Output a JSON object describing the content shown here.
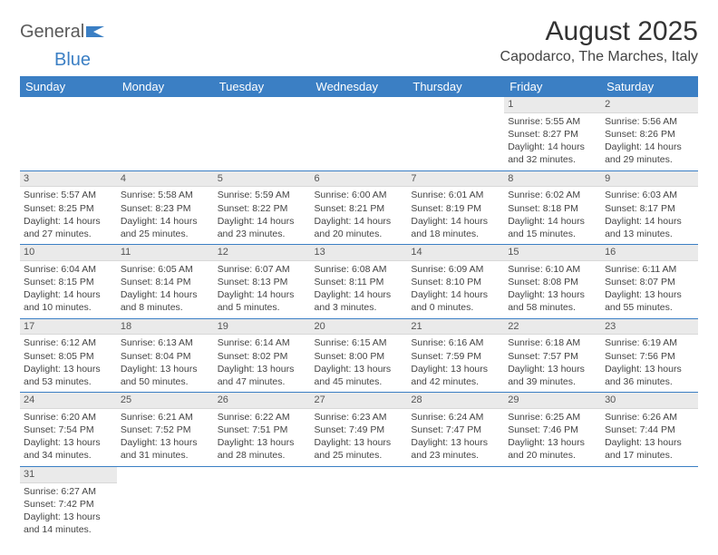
{
  "logo": {
    "text1": "General",
    "text2": "Blue"
  },
  "title": "August 2025",
  "location": "Capodarco, The Marches, Italy",
  "colors": {
    "header_bg": "#3b7fc4",
    "header_text": "#ffffff",
    "daynum_bg": "#eaeaea",
    "border": "#3b7fc4",
    "text": "#444444"
  },
  "weekdays": [
    "Sunday",
    "Monday",
    "Tuesday",
    "Wednesday",
    "Thursday",
    "Friday",
    "Saturday"
  ],
  "weeks": [
    [
      null,
      null,
      null,
      null,
      null,
      {
        "d": "1",
        "sr": "5:55 AM",
        "ss": "8:27 PM",
        "dl": "14 hours and 32 minutes."
      },
      {
        "d": "2",
        "sr": "5:56 AM",
        "ss": "8:26 PM",
        "dl": "14 hours and 29 minutes."
      }
    ],
    [
      {
        "d": "3",
        "sr": "5:57 AM",
        "ss": "8:25 PM",
        "dl": "14 hours and 27 minutes."
      },
      {
        "d": "4",
        "sr": "5:58 AM",
        "ss": "8:23 PM",
        "dl": "14 hours and 25 minutes."
      },
      {
        "d": "5",
        "sr": "5:59 AM",
        "ss": "8:22 PM",
        "dl": "14 hours and 23 minutes."
      },
      {
        "d": "6",
        "sr": "6:00 AM",
        "ss": "8:21 PM",
        "dl": "14 hours and 20 minutes."
      },
      {
        "d": "7",
        "sr": "6:01 AM",
        "ss": "8:19 PM",
        "dl": "14 hours and 18 minutes."
      },
      {
        "d": "8",
        "sr": "6:02 AM",
        "ss": "8:18 PM",
        "dl": "14 hours and 15 minutes."
      },
      {
        "d": "9",
        "sr": "6:03 AM",
        "ss": "8:17 PM",
        "dl": "14 hours and 13 minutes."
      }
    ],
    [
      {
        "d": "10",
        "sr": "6:04 AM",
        "ss": "8:15 PM",
        "dl": "14 hours and 10 minutes."
      },
      {
        "d": "11",
        "sr": "6:05 AM",
        "ss": "8:14 PM",
        "dl": "14 hours and 8 minutes."
      },
      {
        "d": "12",
        "sr": "6:07 AM",
        "ss": "8:13 PM",
        "dl": "14 hours and 5 minutes."
      },
      {
        "d": "13",
        "sr": "6:08 AM",
        "ss": "8:11 PM",
        "dl": "14 hours and 3 minutes."
      },
      {
        "d": "14",
        "sr": "6:09 AM",
        "ss": "8:10 PM",
        "dl": "14 hours and 0 minutes."
      },
      {
        "d": "15",
        "sr": "6:10 AM",
        "ss": "8:08 PM",
        "dl": "13 hours and 58 minutes."
      },
      {
        "d": "16",
        "sr": "6:11 AM",
        "ss": "8:07 PM",
        "dl": "13 hours and 55 minutes."
      }
    ],
    [
      {
        "d": "17",
        "sr": "6:12 AM",
        "ss": "8:05 PM",
        "dl": "13 hours and 53 minutes."
      },
      {
        "d": "18",
        "sr": "6:13 AM",
        "ss": "8:04 PM",
        "dl": "13 hours and 50 minutes."
      },
      {
        "d": "19",
        "sr": "6:14 AM",
        "ss": "8:02 PM",
        "dl": "13 hours and 47 minutes."
      },
      {
        "d": "20",
        "sr": "6:15 AM",
        "ss": "8:00 PM",
        "dl": "13 hours and 45 minutes."
      },
      {
        "d": "21",
        "sr": "6:16 AM",
        "ss": "7:59 PM",
        "dl": "13 hours and 42 minutes."
      },
      {
        "d": "22",
        "sr": "6:18 AM",
        "ss": "7:57 PM",
        "dl": "13 hours and 39 minutes."
      },
      {
        "d": "23",
        "sr": "6:19 AM",
        "ss": "7:56 PM",
        "dl": "13 hours and 36 minutes."
      }
    ],
    [
      {
        "d": "24",
        "sr": "6:20 AM",
        "ss": "7:54 PM",
        "dl": "13 hours and 34 minutes."
      },
      {
        "d": "25",
        "sr": "6:21 AM",
        "ss": "7:52 PM",
        "dl": "13 hours and 31 minutes."
      },
      {
        "d": "26",
        "sr": "6:22 AM",
        "ss": "7:51 PM",
        "dl": "13 hours and 28 minutes."
      },
      {
        "d": "27",
        "sr": "6:23 AM",
        "ss": "7:49 PM",
        "dl": "13 hours and 25 minutes."
      },
      {
        "d": "28",
        "sr": "6:24 AM",
        "ss": "7:47 PM",
        "dl": "13 hours and 23 minutes."
      },
      {
        "d": "29",
        "sr": "6:25 AM",
        "ss": "7:46 PM",
        "dl": "13 hours and 20 minutes."
      },
      {
        "d": "30",
        "sr": "6:26 AM",
        "ss": "7:44 PM",
        "dl": "13 hours and 17 minutes."
      }
    ],
    [
      {
        "d": "31",
        "sr": "6:27 AM",
        "ss": "7:42 PM",
        "dl": "13 hours and 14 minutes."
      },
      null,
      null,
      null,
      null,
      null,
      null
    ]
  ]
}
